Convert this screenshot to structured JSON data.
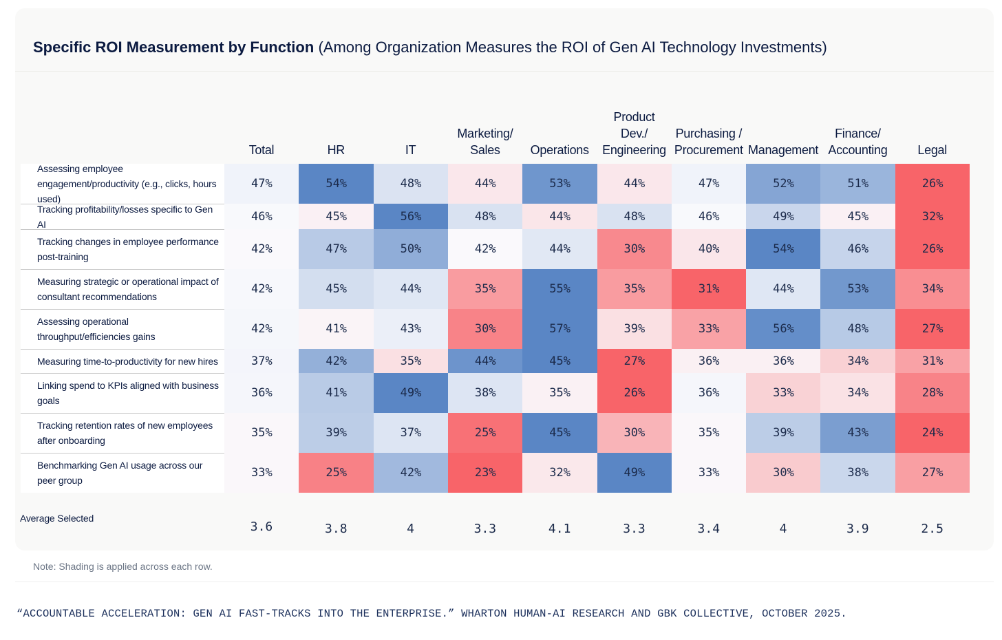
{
  "title_bold": "Specific ROI Measurement by Function",
  "title_rest": "(Among Organization Measures the ROI of Gen AI Technology Investments)",
  "note": "Note: Shading is applied across each row.",
  "source": "“ACCOUNTABLE ACCELERATION: GEN AI FAST-TRACKS INTO THE ENTERPRISE.” WHARTON HUMAN-AI RESEARCH AND GBK COLLECTIVE, OCTOBER 2025.",
  "chart_data": {
    "type": "heatmap",
    "columns": [
      "Total",
      "HR",
      "IT",
      "Marketing/\nSales",
      "Operations",
      "Product\nDev./\nEngineering",
      "Purchasing /\nProcurement",
      "Management",
      "Finance/\nAccounting",
      "Legal"
    ],
    "rows": [
      {
        "label": "Assessing employee engagement/productivity (e.g., clicks, hours used)",
        "values": [
          47,
          54,
          48,
          44,
          53,
          44,
          47,
          52,
          51,
          26
        ]
      },
      {
        "label": "Tracking profitability/losses specific to Gen AI",
        "values": [
          46,
          45,
          56,
          48,
          44,
          48,
          46,
          49,
          45,
          32
        ]
      },
      {
        "label": "Tracking changes in employee performance post-training",
        "values": [
          42,
          47,
          50,
          42,
          44,
          30,
          40,
          54,
          46,
          26
        ]
      },
      {
        "label": "Measuring strategic or operational impact of consultant recommendations",
        "values": [
          42,
          45,
          44,
          35,
          55,
          35,
          31,
          44,
          53,
          34
        ]
      },
      {
        "label": "Assessing operational throughput/efficiencies gains",
        "values": [
          42,
          41,
          43,
          30,
          57,
          39,
          33,
          56,
          48,
          27
        ]
      },
      {
        "label": "Measuring time-to-productivity for new hires",
        "values": [
          37,
          42,
          35,
          44,
          45,
          27,
          36,
          36,
          34,
          31
        ]
      },
      {
        "label": "Linking spend to KPIs aligned with business goals",
        "values": [
          36,
          41,
          49,
          38,
          35,
          26,
          36,
          33,
          34,
          28
        ]
      },
      {
        "label": "Tracking retention rates of new employees after onboarding",
        "values": [
          35,
          39,
          37,
          25,
          45,
          30,
          35,
          39,
          43,
          24
        ]
      },
      {
        "label": "Benchmarking Gen AI usage across our peer group",
        "values": [
          33,
          25,
          42,
          23,
          32,
          49,
          33,
          30,
          38,
          27
        ]
      }
    ],
    "value_suffix": "%",
    "average_label": "Average Selected",
    "averages": [
      "3.6",
      "3.8",
      "4",
      "3.3",
      "4.1",
      "3.3",
      "3.4",
      "4",
      "3.9",
      "2.5"
    ],
    "colors": {
      "high": "#5a86c5",
      "mid": "#fafafd",
      "low": "#f86469"
    }
  }
}
